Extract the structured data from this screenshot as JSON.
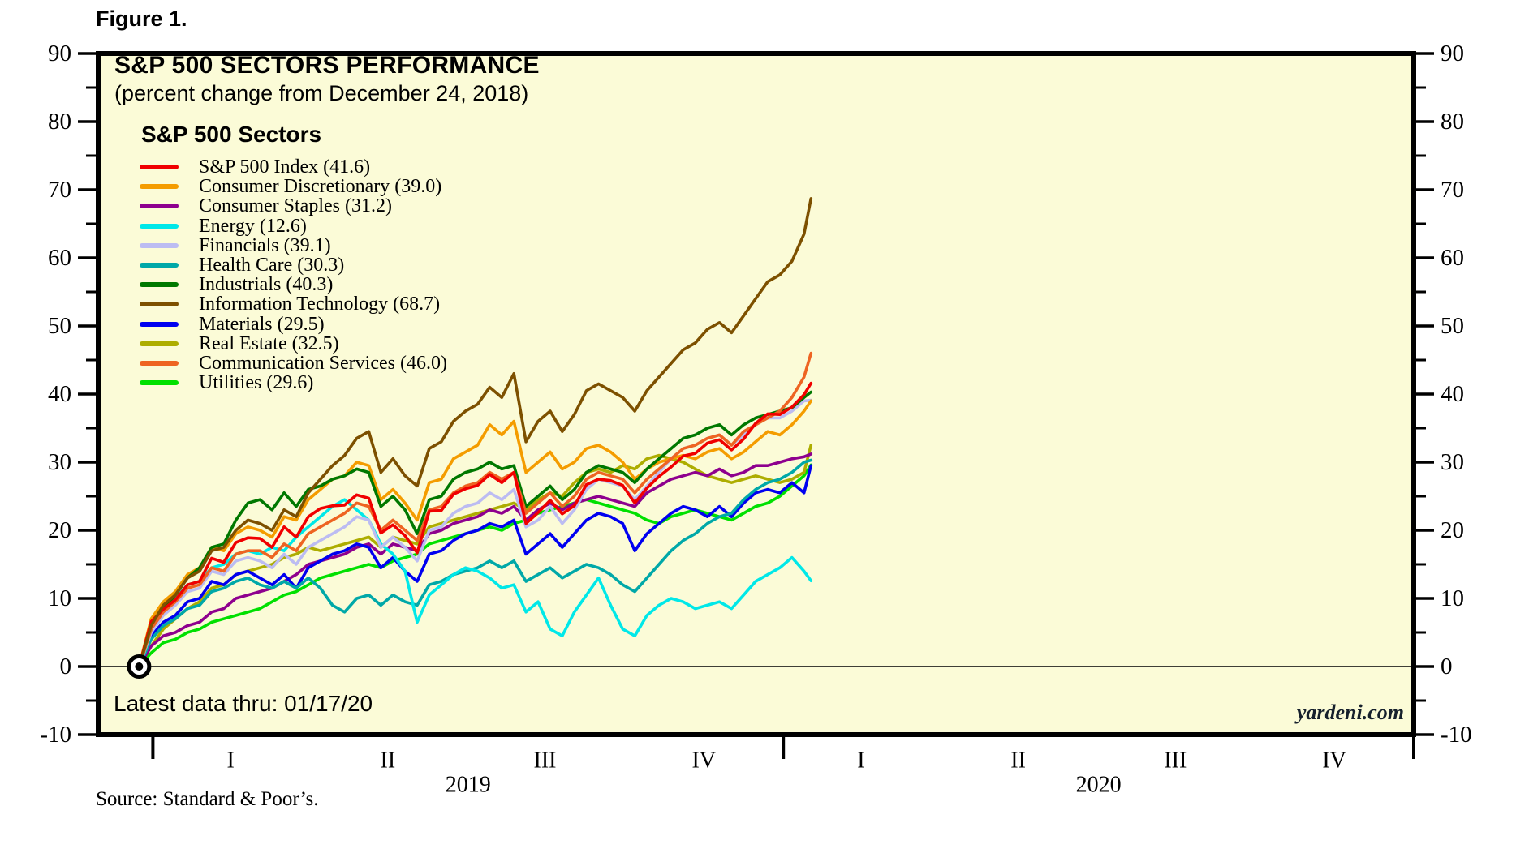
{
  "figure_label": "Figure 1.",
  "header": {
    "title": "S&P 500 SECTORS PERFORMANCE",
    "subtitle": "(percent change from December 24, 2018)"
  },
  "legend_title": "S&P 500 Sectors",
  "latest_data_note": "Latest data thru: 01/17/20",
  "watermark": "yardeni.com",
  "source_note": "Source: Standard & Poor’s.",
  "colors": {
    "plot_bg": "#FBFBD7",
    "frame": "#000000",
    "zero_line": "#000000",
    "watermark_text": "#16202c"
  },
  "chart_data": {
    "type": "line",
    "title": "S&P 500 SECTORS PERFORMANCE",
    "subtitle": "(percent change from December 24, 2018)",
    "ylabel": "",
    "xlabel": "",
    "ylim": [
      -10,
      90
    ],
    "grid": false,
    "legend_position": "upper-left-inside",
    "start_marker": {
      "shape": "bullseye",
      "day": 0,
      "value": 0
    },
    "x_start_date_label": "December 24, 2018",
    "x_end_date_label": "01/17/20",
    "y_axis": {
      "min": -10,
      "max": 90,
      "major_step": 10,
      "minor_step": 5,
      "labels_both_sides": true
    },
    "x_axis": {
      "year_ticks": [
        {
          "label": "2019",
          "day": 8
        },
        {
          "label": "2020",
          "day": 373
        }
      ],
      "right_edge_day": 738,
      "quarter_labels": [
        "I",
        "II",
        "III",
        "IV"
      ],
      "quarter_mid_days": [
        45,
        136,
        227,
        319
      ]
    },
    "x_days_from_start": [
      0,
      7,
      14,
      21,
      28,
      35,
      42,
      49,
      56,
      63,
      70,
      77,
      84,
      91,
      98,
      105,
      112,
      119,
      126,
      133,
      140,
      147,
      154,
      161,
      168,
      175,
      182,
      189,
      196,
      203,
      210,
      217,
      224,
      231,
      238,
      245,
      252,
      259,
      266,
      273,
      280,
      287,
      294,
      301,
      308,
      315,
      322,
      329,
      336,
      343,
      350,
      357,
      364,
      371,
      378,
      385,
      389
    ],
    "draw_order": [
      "Utilities",
      "Real Estate",
      "Consumer Staples",
      "Materials",
      "Health Care",
      "Energy",
      "Financials",
      "Consumer Discretionary",
      "Industrials",
      "Communication Services",
      "S&P 500 Index",
      "Information Technology"
    ],
    "series": [
      {
        "name": "S&P 500 Index",
        "legend_label": "S&P 500 Index (41.6)",
        "final_value": 41.6,
        "color": "#F00000",
        "values": [
          0,
          6.6,
          8.4,
          9.8,
          12,
          12.5,
          15.9,
          15.3,
          18.2,
          18.9,
          18.8,
          17.5,
          20.5,
          19,
          22,
          23.2,
          23.6,
          23.7,
          25.2,
          24.7,
          19.6,
          20.8,
          19.2,
          16.7,
          22.8,
          22.9,
          25.3,
          26.1,
          26.6,
          28.2,
          27,
          28.5,
          21,
          22.6,
          24.4,
          22.4,
          23.6,
          26.7,
          27.5,
          27.3,
          26.6,
          24,
          26.2,
          27.9,
          29.3,
          30.9,
          31.3,
          32.8,
          33.3,
          31.8,
          33.4,
          35.7,
          37.1,
          37,
          38.1,
          39.9,
          41.6
        ]
      },
      {
        "name": "Consumer Discretionary",
        "legend_label": "Consumer Discretionary (39.0)",
        "final_value": 39.0,
        "color": "#F49C00",
        "values": [
          0,
          7,
          9.5,
          11,
          13.5,
          14.5,
          17.5,
          17,
          19.5,
          20.5,
          20,
          19,
          22,
          21.5,
          24.5,
          26,
          27.5,
          28,
          30,
          29.5,
          24.5,
          26,
          24,
          21.5,
          27,
          27.5,
          30.5,
          31.5,
          32.5,
          35.5,
          34,
          36,
          28.5,
          30,
          31.5,
          29,
          30,
          32,
          32.5,
          31.5,
          30,
          27.5,
          29,
          30,
          30.5,
          31,
          30.5,
          31.5,
          32,
          30.5,
          31.5,
          33,
          34.5,
          34,
          35.5,
          37.5,
          39
        ]
      },
      {
        "name": "Consumer Staples",
        "legend_label": "Consumer Staples (31.2)",
        "final_value": 31.2,
        "color": "#8E008E",
        "values": [
          0,
          3,
          4.5,
          5,
          6,
          6.5,
          8,
          8.5,
          10,
          10.5,
          11,
          11.5,
          12.5,
          13.5,
          15,
          15.5,
          16,
          16.5,
          17.5,
          18,
          16.5,
          18,
          17.5,
          17,
          19.5,
          20,
          21,
          21.5,
          22,
          23,
          22.5,
          23.5,
          21.5,
          23,
          24,
          23,
          24,
          24.5,
          25,
          24.5,
          24,
          23.5,
          25.5,
          26.5,
          27.5,
          28,
          28.5,
          28,
          29,
          28,
          28.5,
          29.5,
          29.5,
          30,
          30.5,
          30.8,
          31.2
        ]
      },
      {
        "name": "Energy",
        "legend_label": "Energy (12.6)",
        "final_value": 12.6,
        "color": "#00E8E8",
        "values": [
          0,
          5.5,
          8.5,
          10,
          12,
          12.5,
          14.5,
          15,
          16.5,
          17,
          16.5,
          17.5,
          17,
          19,
          20.5,
          22,
          23.5,
          24.5,
          23,
          21.5,
          18,
          16.5,
          14,
          6.5,
          10.5,
          12,
          13.5,
          14.5,
          14,
          13,
          11.5,
          12,
          8,
          9.5,
          5.5,
          4.5,
          8,
          10.5,
          13,
          9,
          5.5,
          4.5,
          7.5,
          9,
          10,
          9.5,
          8.5,
          9,
          9.5,
          8.5,
          10.5,
          12.5,
          13.5,
          14.5,
          16,
          14,
          12.6
        ]
      },
      {
        "name": "Financials",
        "legend_label": "Financials (39.1)",
        "final_value": 39.1,
        "color": "#BCBCF2",
        "values": [
          0,
          5,
          7.5,
          9,
          11,
          11.5,
          14,
          13.5,
          15.5,
          16,
          15.5,
          14.5,
          16.5,
          15,
          17.5,
          18.5,
          19.5,
          20.5,
          22,
          21.5,
          17.5,
          19,
          17.5,
          15.5,
          20,
          20.5,
          22.5,
          23.5,
          24,
          25.5,
          24.5,
          26,
          20.5,
          21.5,
          23.5,
          21,
          23,
          26,
          27.5,
          27,
          26.5,
          24.5,
          26.5,
          28.5,
          30.5,
          32,
          32.5,
          33.5,
          34,
          32.5,
          34,
          35.5,
          36.5,
          36.5,
          37.5,
          39,
          39.1
        ]
      },
      {
        "name": "Health Care",
        "legend_label": "Health Care (30.3)",
        "final_value": 30.3,
        "color": "#00A8A8",
        "values": [
          0,
          4,
          6,
          7,
          8.5,
          9,
          11,
          11.5,
          12.5,
          13,
          12,
          11.5,
          12.5,
          11.5,
          13,
          11.5,
          9,
          8,
          10,
          10.5,
          9,
          10.5,
          9.5,
          9,
          12,
          12.5,
          13.5,
          14,
          14.5,
          15.5,
          14.5,
          15.5,
          12.5,
          13.5,
          14.5,
          13,
          14,
          15,
          14.5,
          13.5,
          12,
          11,
          13,
          15,
          17,
          18.5,
          19.5,
          21,
          22,
          22.5,
          24.5,
          26,
          27,
          27.5,
          28.5,
          30,
          30.3
        ]
      },
      {
        "name": "Industrials",
        "legend_label": "Industrials (40.3)",
        "final_value": 40.3,
        "color": "#007800",
        "values": [
          0,
          5.5,
          8.5,
          10.5,
          13,
          14.5,
          17.5,
          18,
          21.5,
          24,
          24.5,
          23,
          25.5,
          23.5,
          26,
          26.5,
          27.5,
          28,
          29,
          28.5,
          23.5,
          25,
          23,
          19.5,
          24.5,
          25,
          27.5,
          28.5,
          29,
          30,
          29,
          29.5,
          23.5,
          25,
          26.5,
          24.5,
          26,
          28.5,
          29.5,
          29,
          28.5,
          27,
          29,
          30.5,
          32,
          33.5,
          34,
          35,
          35.5,
          34,
          35.5,
          36.5,
          37,
          37.5,
          38,
          39.5,
          40.3
        ]
      },
      {
        "name": "Information Technology",
        "legend_label": "Information Technology (68.7)",
        "final_value": 68.7,
        "color": "#7D5000",
        "values": [
          0,
          6,
          9,
          10.5,
          13,
          14,
          17,
          17.5,
          20,
          21.5,
          21,
          20,
          23,
          22,
          25.5,
          27.5,
          29.5,
          31,
          33.5,
          34.5,
          28.5,
          30.5,
          28,
          26.5,
          32,
          33,
          36,
          37.5,
          38.5,
          41,
          39.5,
          43,
          33,
          36,
          37.5,
          34.5,
          37,
          40.5,
          41.5,
          40.5,
          39.5,
          37.5,
          40.5,
          42.5,
          44.5,
          46.5,
          47.5,
          49.5,
          50.5,
          49,
          51.5,
          54,
          56.5,
          57.5,
          59.5,
          63.5,
          68.7
        ]
      },
      {
        "name": "Materials",
        "legend_label": "Materials (29.5)",
        "final_value": 29.5,
        "color": "#0000F0",
        "values": [
          0,
          4.5,
          6.5,
          7.5,
          9.5,
          10,
          12.5,
          12,
          13.5,
          14,
          13,
          12,
          13.5,
          11.5,
          14.5,
          15.5,
          16.5,
          17,
          18,
          17.5,
          14.5,
          16,
          14,
          12.5,
          16.5,
          17,
          18.5,
          19.5,
          20,
          21,
          20.5,
          21.5,
          16.5,
          18,
          19.5,
          17.5,
          19.5,
          21.5,
          22.5,
          22,
          21,
          17,
          19.5,
          21,
          22.5,
          23.5,
          23,
          22,
          23.5,
          22,
          24,
          25.5,
          26,
          25.5,
          27,
          25.5,
          29.5
        ]
      },
      {
        "name": "Real Estate",
        "legend_label": "Real Estate (32.5)",
        "final_value": 32.5,
        "color": "#ADAD00",
        "values": [
          0,
          3,
          5.5,
          7,
          8.5,
          9.5,
          11.5,
          12,
          13.5,
          14,
          14.5,
          15,
          16,
          16.5,
          17.5,
          17,
          17.5,
          18,
          18.5,
          19,
          17.5,
          19,
          18.5,
          18,
          20.5,
          21,
          21.5,
          22,
          22.5,
          23,
          23.5,
          24,
          23,
          24.5,
          25.5,
          25,
          27,
          28.5,
          29,
          28.5,
          29.5,
          29,
          30.5,
          31,
          30.5,
          30,
          29,
          28,
          27.5,
          27,
          27.5,
          28,
          27.5,
          27,
          27.5,
          28.5,
          32.5
        ]
      },
      {
        "name": "Communication Services",
        "legend_label": "Communication Services (46.0)",
        "final_value": 46.0,
        "color": "#EE6422",
        "values": [
          0,
          5.5,
          8,
          9.5,
          11.5,
          12,
          14.5,
          14,
          16.5,
          17,
          17,
          16,
          18,
          17,
          19.5,
          20.5,
          21.5,
          22.5,
          24,
          23.5,
          20,
          21.5,
          20,
          18.5,
          23,
          23.5,
          25.5,
          26.5,
          27,
          28.5,
          27.5,
          28.5,
          22.5,
          24,
          25.5,
          23.5,
          25,
          27.5,
          28.5,
          28,
          27.5,
          25.5,
          27.5,
          29,
          30.5,
          32,
          32.5,
          33.5,
          34,
          32.5,
          34.5,
          35.5,
          36.5,
          37.5,
          39.5,
          42.5,
          46
        ]
      },
      {
        "name": "Utilities",
        "legend_label": "Utilities (29.6)",
        "final_value": 29.6,
        "color": "#00E000",
        "values": [
          0,
          2,
          3.5,
          4,
          5,
          5.5,
          6.5,
          7,
          7.5,
          8,
          8.5,
          9.5,
          10.5,
          11,
          12,
          13,
          13.5,
          14,
          14.5,
          15,
          14.5,
          15.5,
          16,
          16.5,
          18,
          18.5,
          19,
          19.5,
          20,
          20.5,
          20,
          21,
          21.5,
          22.5,
          23,
          23.5,
          24,
          24.5,
          24,
          23.5,
          23,
          22.5,
          21.5,
          21,
          22,
          22.5,
          23,
          22.5,
          22,
          21.5,
          22.5,
          23.5,
          24,
          25,
          26.5,
          28,
          29.6
        ]
      }
    ]
  }
}
